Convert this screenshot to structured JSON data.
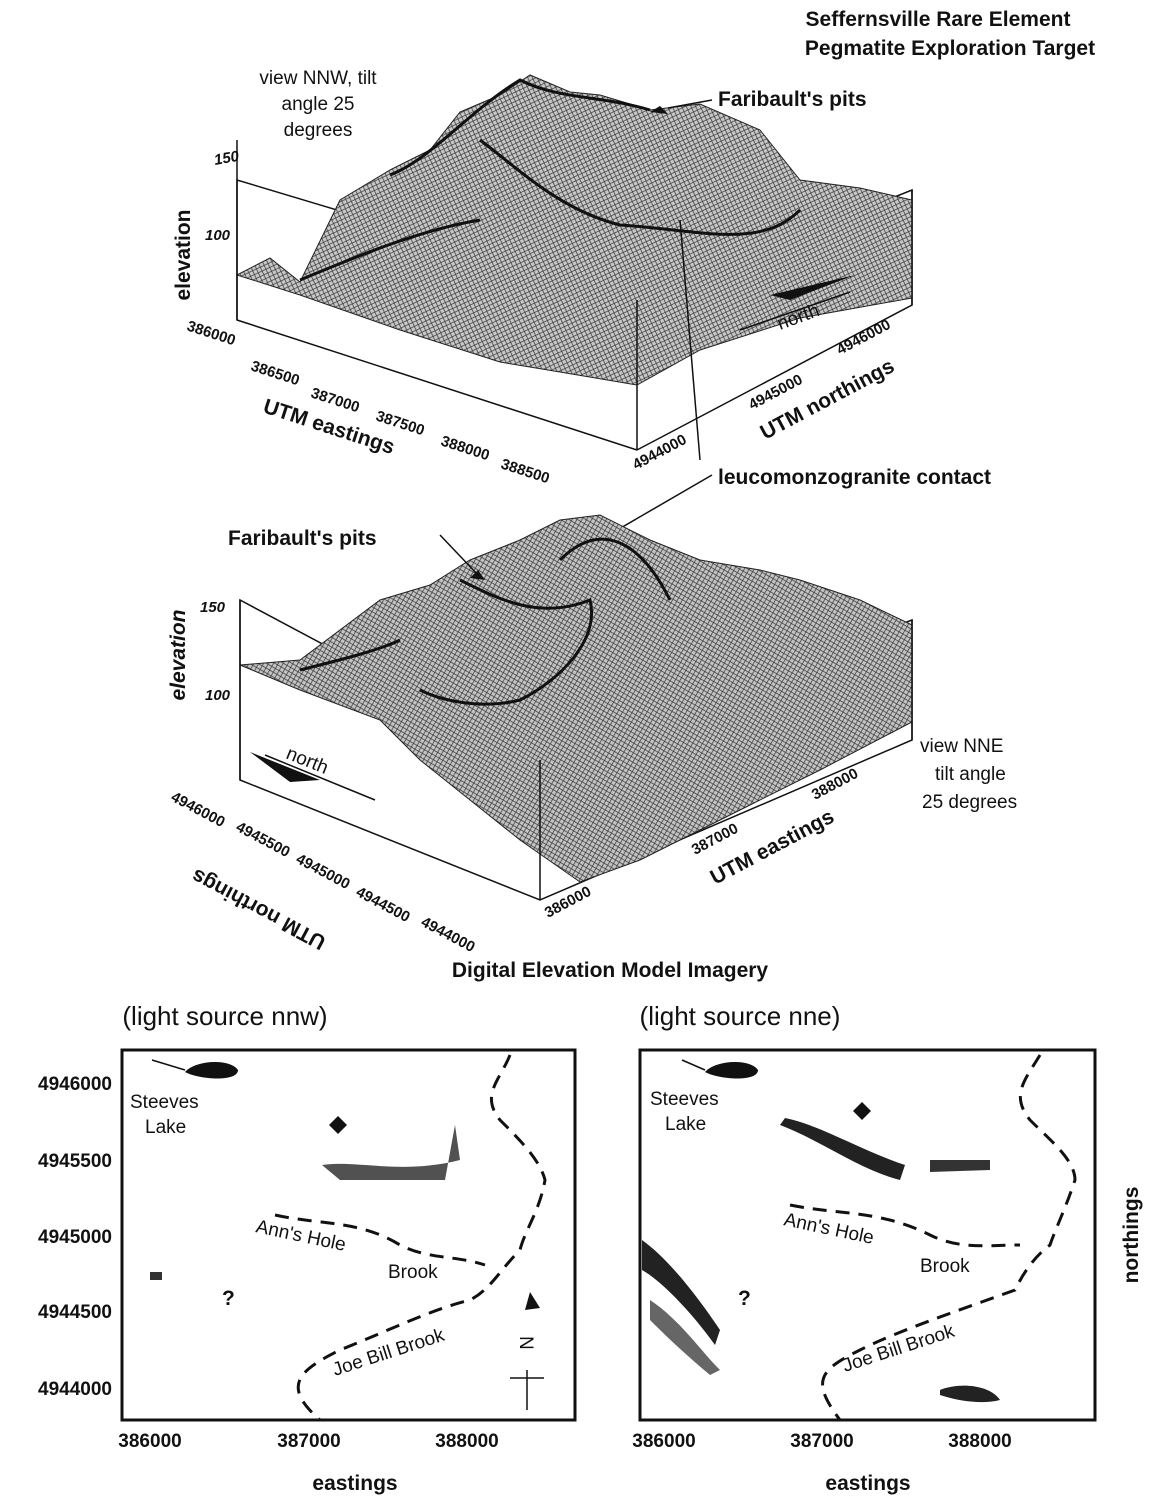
{
  "title": [
    "Seffernsville Rare Element",
    "Pegmatite Exploration Target"
  ],
  "top_view": {
    "note": [
      "view NNW, tilt",
      "angle 25",
      "degrees"
    ],
    "pits_label": "Faribault's pits",
    "z_label": "elevation",
    "z_ticks": [
      150,
      100
    ],
    "x_label": "UTM eastings",
    "x_ticks": [
      386000,
      386500,
      387000,
      387500,
      388000,
      388500
    ],
    "y_label": "UTM northings",
    "y_ticks": [
      4944000,
      4945000,
      4946000
    ],
    "arrow_label": "north"
  },
  "contact_label": "leucomonzogranite contact",
  "bottom_view": {
    "pits_label": "Faribault's pits",
    "z_label": "elevation",
    "z_ticks": [
      150,
      100
    ],
    "note": [
      "view NNE",
      "tilt angle",
      "25 degrees"
    ],
    "arrow_label": "north",
    "y_label": "UTM northings",
    "y_ticks": [
      4946000,
      4945500,
      4945000,
      4944500,
      4944000
    ],
    "x_label": "UTM eastings",
    "x_ticks": [
      386000,
      387000,
      388000
    ]
  },
  "dem": {
    "title": "Digital Elevation Model Imagery",
    "y_ticks": [
      4946000,
      4945500,
      4945000,
      4944500,
      4944000
    ],
    "y_label": "northings",
    "panels": [
      {
        "subtitle": "(light source nnw)",
        "x_ticks": [
          386000,
          387000,
          388000
        ],
        "x_label": "eastings",
        "lake": [
          "Steeves",
          "Lake"
        ],
        "brook1": [
          "Ann's Hole",
          "Brook"
        ],
        "brook2": "Joe Bill Brook",
        "unknown": "?",
        "north": "N"
      },
      {
        "subtitle": "(light source nne)",
        "x_ticks": [
          386000,
          387000,
          388000
        ],
        "x_label": "eastings",
        "lake": [
          "Steeves",
          "Lake"
        ],
        "brook1": [
          "Ann's Hole",
          "Brook"
        ],
        "brook2": "Joe Bill Brook",
        "unknown": "?"
      }
    ]
  }
}
